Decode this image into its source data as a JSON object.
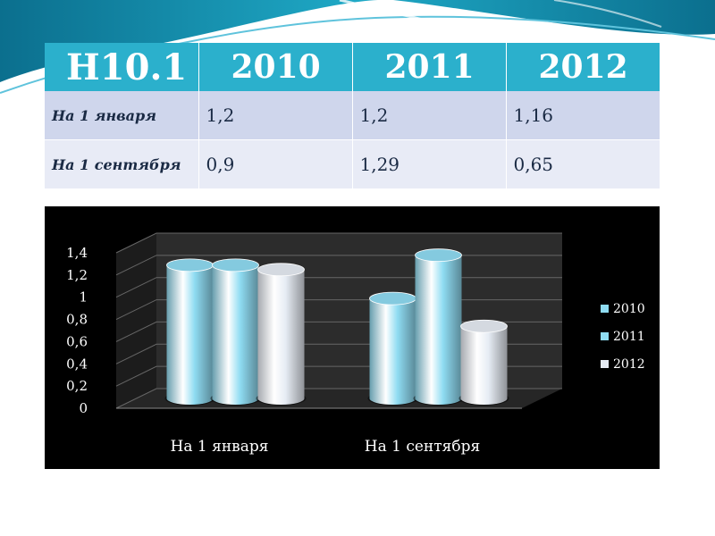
{
  "table": {
    "header": [
      "Н10.1",
      "2010",
      "2011",
      "2012"
    ],
    "rows": [
      [
        "На 1 января",
        "1,2",
        "1,2",
        "1,16"
      ],
      [
        "На 1 сентября",
        "0,9",
        "1,29",
        "0,65"
      ]
    ]
  },
  "chart_data": {
    "type": "bar",
    "categories": [
      "На 1 января",
      "На 1 сентября"
    ],
    "series": [
      {
        "name": "2010",
        "values": [
          1.2,
          0.9
        ],
        "color": "#8fdcf2"
      },
      {
        "name": "2011",
        "values": [
          1.2,
          1.29
        ],
        "color": "#8fdcf2"
      },
      {
        "name": "2012",
        "values": [
          1.16,
          0.65
        ],
        "color": "#e6ecf4"
      }
    ],
    "y_ticks": [
      "0",
      "0,2",
      "0,4",
      "0,6",
      "0,8",
      "1",
      "1,2",
      "1,4"
    ],
    "ylim": [
      0,
      1.4
    ],
    "legend": "right",
    "grid": true,
    "style": "3d-cylinder",
    "background": "#000000"
  }
}
